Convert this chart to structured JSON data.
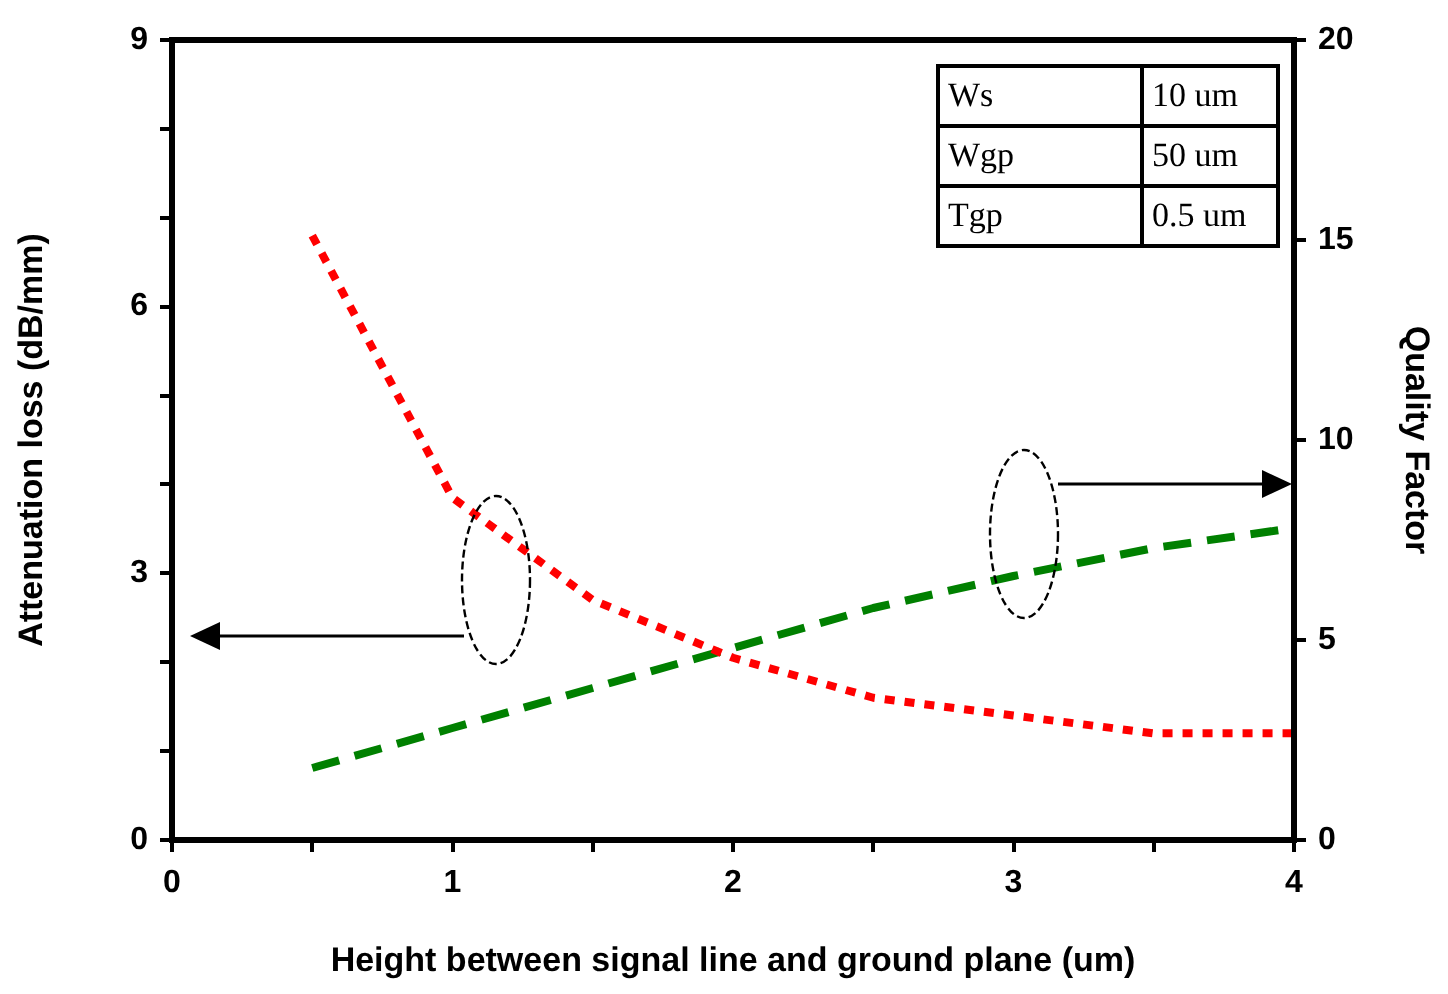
{
  "chart_data": {
    "type": "line",
    "xlabel": "Height between signal line and ground plane (um)",
    "ylabel": "Attenuation loss (dB/mm)",
    "y2label": "Quality Factor",
    "x": [
      0.5,
      1,
      1.5,
      2,
      2.5,
      3,
      3.5,
      4
    ],
    "series": [
      {
        "color": "#ff0000",
        "line_style": "dotted",
        "values": [
          6.8,
          3.85,
          2.7,
          2.05,
          1.6,
          1.4,
          1.2,
          1.2
        ]
      },
      {
        "color": "#008000",
        "line_style": "dashed",
        "axis": "y2",
        "values": [
          1.8,
          2.8,
          3.8,
          4.8,
          5.8,
          6.6,
          7.3,
          7.8
        ]
      }
    ],
    "xlim": [
      0,
      4
    ],
    "xticks": [
      0,
      {
        "value": 0.5,
        "label": null
      },
      1,
      {
        "value": 1.5,
        "label": null
      },
      2,
      {
        "value": 2.5,
        "label": null
      },
      3,
      {
        "value": 3.5,
        "label": null
      },
      4
    ],
    "ylim": [
      0,
      9
    ],
    "yticks": [
      0,
      {
        "value": 1,
        "label": null
      },
      {
        "value": 2,
        "label": null
      },
      3,
      {
        "value": 4,
        "label": null
      },
      {
        "value": 5,
        "label": null
      },
      6,
      {
        "value": 7,
        "label": null
      },
      {
        "value": 8,
        "label": null
      },
      9
    ],
    "y2lim": [
      0,
      20
    ],
    "y2ticks": [
      0,
      5,
      10,
      15,
      20
    ],
    "annotations": [
      "Ws",
      "10 um",
      "Wgp",
      "50 um",
      "Tgp",
      "0.5 um"
    ],
    "grid": false,
    "legend": false,
    "marker": "none"
  }
}
